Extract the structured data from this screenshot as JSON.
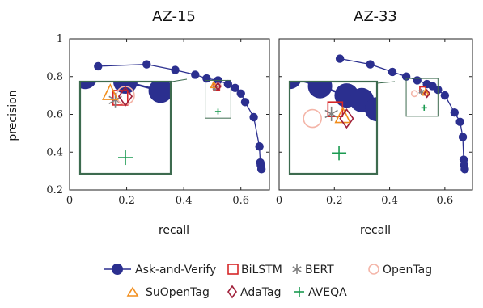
{
  "chart_data": [
    {
      "type": "scatter",
      "title": "AZ-15",
      "xlabel": "recall",
      "ylabel": "precision",
      "xlim": [
        0,
        0.7
      ],
      "ylim": [
        0.2,
        1.0
      ],
      "xticks": [
        "0",
        "0.2",
        "0.4",
        "0.6"
      ],
      "yticks": [
        "0.2",
        "0.4",
        "0.6",
        "0.8",
        "1"
      ],
      "series": [
        {
          "name": "Ask-and-Verify",
          "marker": "circle",
          "line": true,
          "color": "#2b2f8f",
          "points": [
            [
              0.1,
              0.855
            ],
            [
              0.27,
              0.865
            ],
            [
              0.37,
              0.835
            ],
            [
              0.44,
              0.81
            ],
            [
              0.48,
              0.79
            ],
            [
              0.52,
              0.78
            ],
            [
              0.555,
              0.76
            ],
            [
              0.58,
              0.74
            ],
            [
              0.6,
              0.71
            ],
            [
              0.615,
              0.665
            ],
            [
              0.645,
              0.585
            ],
            [
              0.665,
              0.43
            ],
            [
              0.668,
              0.345
            ],
            [
              0.67,
              0.33
            ],
            [
              0.672,
              0.31
            ]
          ]
        },
        {
          "name": "BiLSTM",
          "marker": "square",
          "color": "#d62728",
          "points": [
            [
              0.515,
              0.745
            ]
          ]
        },
        {
          "name": "BERT",
          "marker": "asterisk",
          "color": "#808080",
          "points": [
            [
              0.51,
              0.74
            ]
          ]
        },
        {
          "name": "OpenTag",
          "marker": "circle-open",
          "color": "#f4b5a8",
          "points": [
            [
              0.52,
              0.75
            ]
          ]
        },
        {
          "name": "SuOpenTag",
          "marker": "triangle",
          "color": "#f28e1c",
          "points": [
            [
              0.505,
              0.755
            ]
          ]
        },
        {
          "name": "AdaTag",
          "marker": "diamond",
          "color": "#a0203a",
          "points": [
            [
              0.52,
              0.748
            ]
          ]
        },
        {
          "name": "AVEQA",
          "marker": "plus",
          "color": "#1a9a50",
          "points": [
            [
              0.52,
              0.615
            ]
          ]
        }
      ]
    },
    {
      "type": "scatter",
      "title": "AZ-33",
      "xlabel": "recall",
      "ylabel": "",
      "xlim": [
        0,
        0.7
      ],
      "ylim": [
        0.2,
        1.0
      ],
      "xticks": [
        "0",
        "0.2",
        "0.4",
        "0.6"
      ],
      "yticks": [],
      "series": [
        {
          "name": "Ask-and-Verify",
          "marker": "circle",
          "line": true,
          "color": "#2b2f8f",
          "points": [
            [
              0.22,
              0.895
            ],
            [
              0.33,
              0.865
            ],
            [
              0.41,
              0.825
            ],
            [
              0.46,
              0.8
            ],
            [
              0.5,
              0.78
            ],
            [
              0.535,
              0.76
            ],
            [
              0.555,
              0.75
            ],
            [
              0.575,
              0.73
            ],
            [
              0.6,
              0.7
            ],
            [
              0.635,
              0.61
            ],
            [
              0.655,
              0.56
            ],
            [
              0.665,
              0.48
            ],
            [
              0.668,
              0.36
            ],
            [
              0.67,
              0.33
            ],
            [
              0.672,
              0.31
            ]
          ]
        },
        {
          "name": "BiLSTM",
          "marker": "square",
          "color": "#d62728",
          "points": [
            [
              0.52,
              0.73
            ]
          ]
        },
        {
          "name": "BERT",
          "marker": "asterisk",
          "color": "#808080",
          "points": [
            [
              0.515,
              0.72
            ]
          ]
        },
        {
          "name": "OpenTag",
          "marker": "circle-open",
          "color": "#f4b5a8",
          "points": [
            [
              0.49,
              0.71
            ]
          ]
        },
        {
          "name": "SuOpenTag",
          "marker": "triangle",
          "color": "#f28e1c",
          "points": [
            [
              0.53,
              0.715
            ]
          ]
        },
        {
          "name": "AdaTag",
          "marker": "diamond",
          "color": "#a0203a",
          "points": [
            [
              0.535,
              0.71
            ]
          ]
        },
        {
          "name": "AVEQA",
          "marker": "plus",
          "color": "#1a9a50",
          "points": [
            [
              0.525,
              0.635
            ]
          ]
        }
      ]
    }
  ],
  "zoom_color": "#3d6b4f",
  "legend": {
    "items": [
      {
        "label": "Ask-and-Verify",
        "marker": "circle-line",
        "color": "#2b2f8f"
      },
      {
        "label": "BiLSTM",
        "marker": "square",
        "color": "#d62728"
      },
      {
        "label": "BERT",
        "marker": "asterisk",
        "color": "#808080"
      },
      {
        "label": "OpenTag",
        "marker": "circle-open",
        "color": "#f4b5a8"
      },
      {
        "label": "SuOpenTag",
        "marker": "triangle",
        "color": "#f28e1c"
      },
      {
        "label": "AdaTag",
        "marker": "diamond",
        "color": "#a0203a"
      },
      {
        "label": "AVEQA",
        "marker": "plus",
        "color": "#1a9a50"
      }
    ]
  }
}
